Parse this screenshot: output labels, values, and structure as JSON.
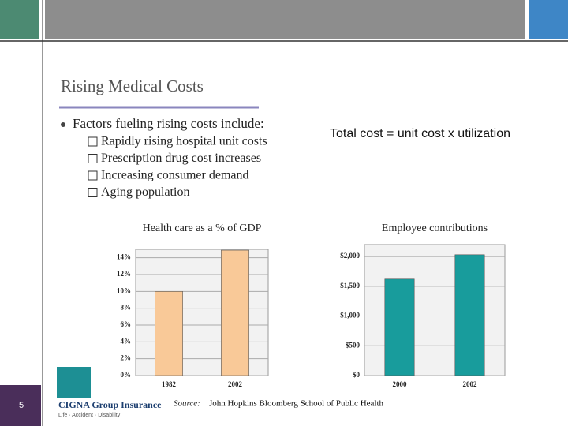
{
  "slide": {
    "title": "Rising Medical Costs",
    "bullet": "Factors fueling rising costs include:",
    "sub_bullets": [
      "Rapidly rising hospital unit costs",
      "Prescription drug cost increases",
      "Increasing consumer demand",
      "Aging population"
    ],
    "formula": "Total cost = unit cost x utilization",
    "source_label": "Source:",
    "source": "John Hopkins Bloomberg School of Public Health",
    "page_number": "5",
    "logo": {
      "name": "CIGNA Group Insurance",
      "tagline": "Life · Accident · Disability"
    }
  },
  "chart_data": [
    {
      "type": "bar",
      "title": "Health care as a % of GDP",
      "categories": [
        "1982",
        "2002"
      ],
      "values": [
        10,
        14.9
      ],
      "color": "#f9c998",
      "ylim": [
        0,
        15
      ],
      "yticks": [
        {
          "value": 0,
          "label": "0%"
        },
        {
          "value": 2,
          "label": "2%"
        },
        {
          "value": 4,
          "label": "4%"
        },
        {
          "value": 6,
          "label": "6%"
        },
        {
          "value": 8,
          "label": "8%"
        },
        {
          "value": 10,
          "label": "10%"
        },
        {
          "value": 12,
          "label": "12%"
        },
        {
          "value": 14,
          "label": "14%"
        }
      ],
      "grid": true
    },
    {
      "type": "bar",
      "title": "Employee contributions",
      "categories": [
        "2000",
        "2002"
      ],
      "values": [
        1620,
        2030
      ],
      "color": "#189c9c",
      "ylim": [
        0,
        2200
      ],
      "yticks": [
        {
          "value": 0,
          "label": "$0"
        },
        {
          "value": 500,
          "label": "$500"
        },
        {
          "value": 1000,
          "label": "$1,000"
        },
        {
          "value": 1500,
          "label": "$1,500"
        },
        {
          "value": 2000,
          "label": "$2,000"
        }
      ],
      "grid": true
    }
  ]
}
